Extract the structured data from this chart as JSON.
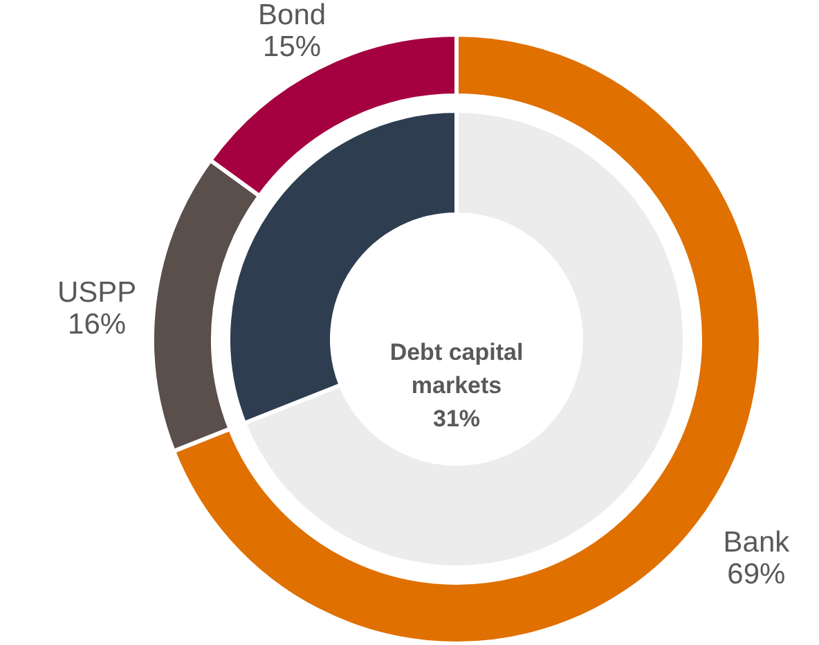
{
  "chart_data": {
    "type": "donut",
    "categories": [
      "Bank",
      "USPP",
      "Bond"
    ],
    "series": [
      {
        "values": [
          69,
          16,
          15
        ],
        "colors": [
          "#e07000",
          "#5a4f4b",
          "#a5003f"
        ],
        "value_labels": [
          "69%",
          "16%",
          "15%"
        ]
      },
      {
        "name": "Debt capital markets",
        "colors": [
          "#ececec",
          "#2e3d50",
          null
        ],
        "values": [
          69,
          31,
          null
        ]
      }
    ],
    "annotations": [
      "31%"
    ]
  }
}
